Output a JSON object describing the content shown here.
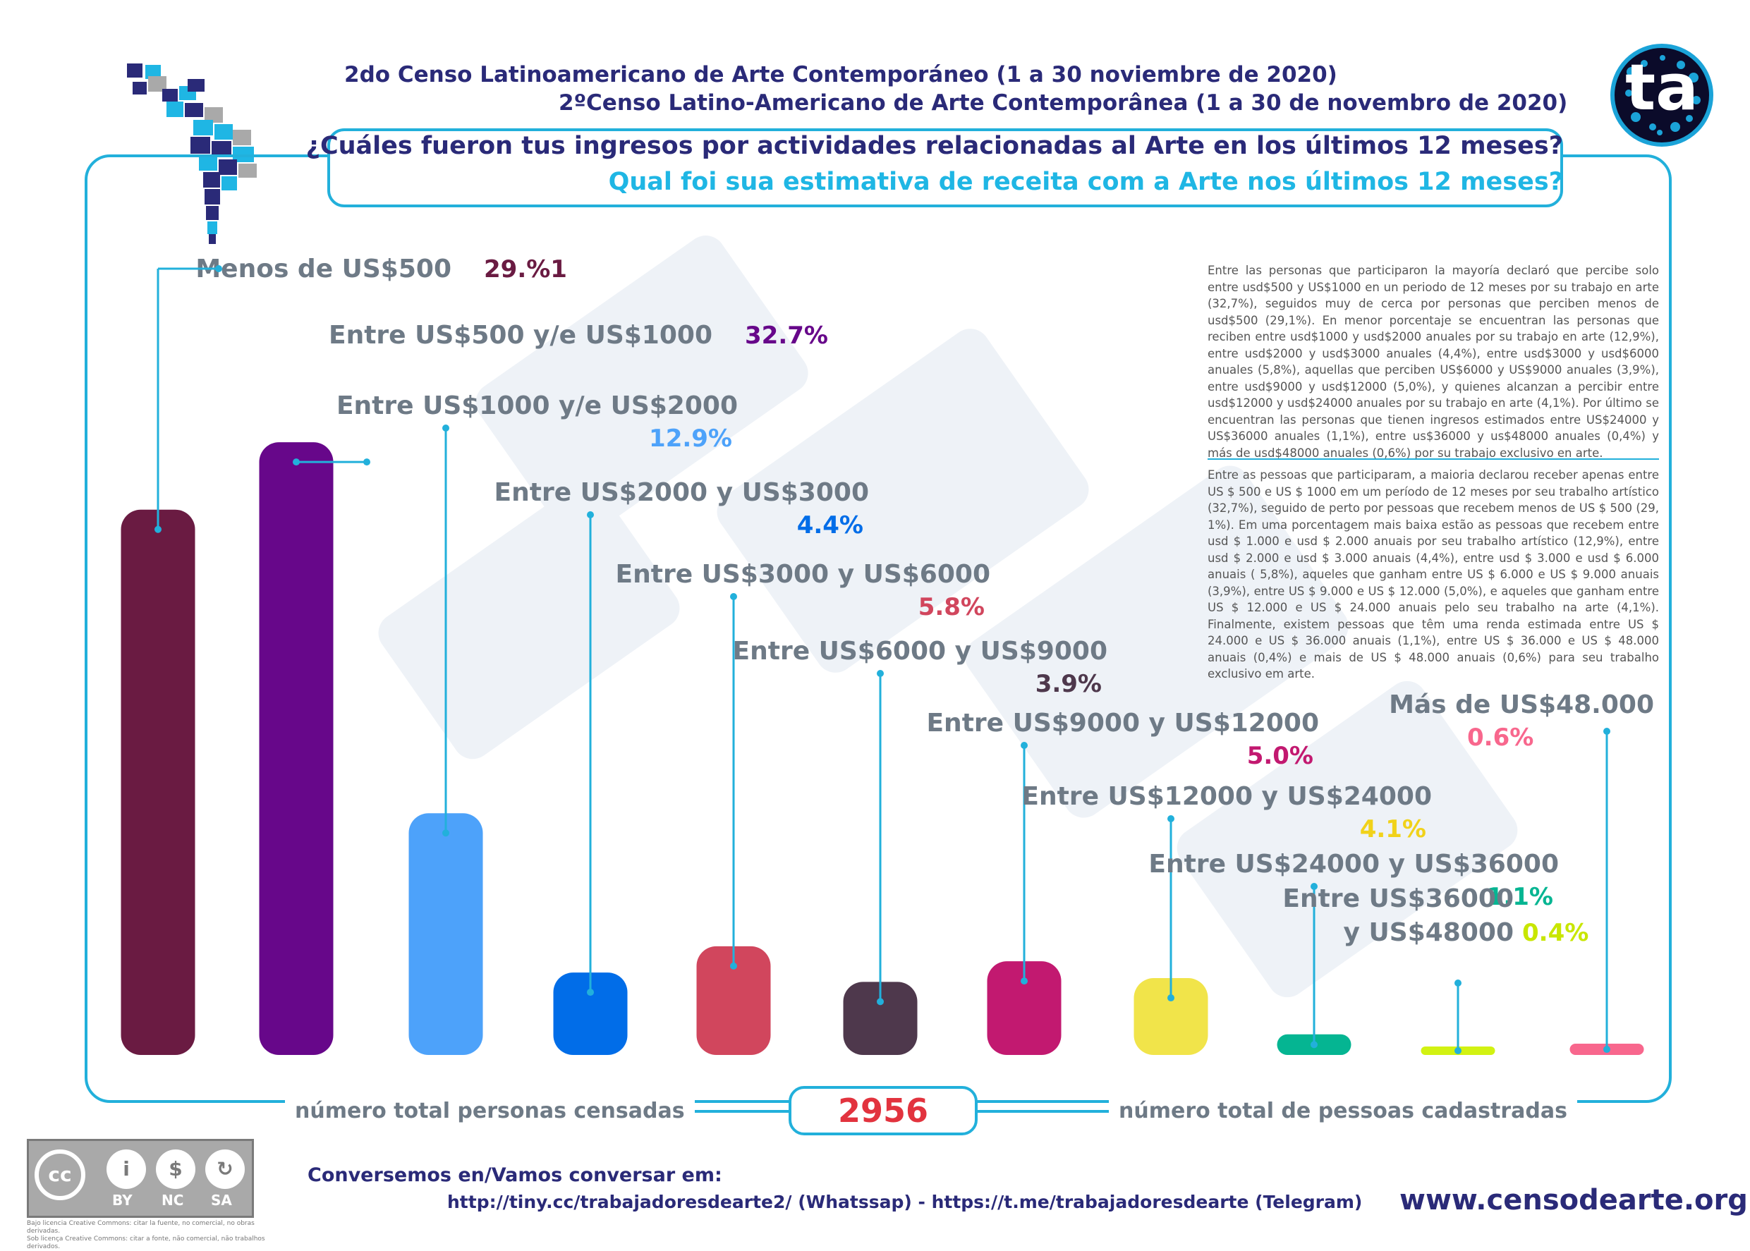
{
  "header": {
    "title_es": "2do Censo Latinoamericano de Arte Contemporáneo (1 a 30 noviembre de 2020)",
    "title_pt": "2ºCenso Latino-Americano de Arte Contemporânea (1 a 30 de novembro de 2020)",
    "question_es": "¿Cuáles fueron tus ingresos por actividades relacionadas al Arte en los últimos 12 meses?",
    "question_pt": "Qual foi sua estimativa de receita com a Arte nos últimos 12 meses?",
    "logo_text": "ta"
  },
  "description": {
    "es": "Entre las personas que participaron la mayoría declaró que percibe solo entre usd$500 y US$1000 en un periodo de 12 meses por su trabajo en arte (32,7%), seguidos muy de cerca por personas que perciben menos de usd$500 (29,1%). En menor porcentaje se encuentran las personas que reciben entre usd$1000 y usd$2000 anuales por su trabajo en arte (12,9%), entre usd$2000 y usd$3000 anuales (4,4%), entre usd$3000 y usd$6000 anuales (5,8%), aquellas que perciben US$6000 y US$9000 anuales (3,9%), entre usd$9000 y usd$12000 (5,0%), y quienes alcanzan a percibir entre usd$12000 y usd$24000 anuales por su trabajo en arte (4,1%). Por último se encuentran las personas que tienen ingresos estimados entre US$24000 y US$36000 anuales (1,1%), entre us$36000 y us$48000 anuales (0,4%) y más de usd$48000 anuales (0,6%) por su trabajo exclusivo en arte.",
    "pt": "Entre as pessoas que participaram, a maioria declarou receber apenas entre US $ 500 e US $ 1000 em um período de 12 meses por seu trabalho artístico (32,7%), seguido de perto por pessoas que recebem menos de US $ 500 (29, 1%). Em uma porcentagem mais baixa estão as pessoas que recebem entre usd $ 1.000 e usd $ 2.000 anuais por seu trabalho artístico (12,9%), entre usd $ 2.000 e usd $ 3.000 anuais (4,4%), entre usd $ 3.000 e usd $ 6.000 anuais ( 5,8%), aqueles que ganham entre US $ 6.000 e US $ 9.000 anuais (3,9%), entre US $ 9.000 e US $ 12.000 (5,0%), e aqueles que ganham entre US $ 12.000 e US $ 24.000 anuais pelo seu trabalho na arte (4,1%). Finalmente, existem pessoas que têm uma renda estimada entre US $ 24.000 e US $ 36.000 anuais (1,1%), entre US $ 36.000 e US $ 48.000 anuais (0,4%) e mais de US $ 48.000 anuais (0,6%) para seu trabalho exclusivo em arte."
  },
  "chart_data": {
    "type": "bar",
    "categories": [
      "Menos de US$500",
      "Entre US$500 y/e US$1000",
      "Entre US$1000 y/e US$2000",
      "Entre US$2000 y US$3000",
      "Entre US$3000 y US$6000",
      "Entre US$6000 y US$9000",
      "Entre US$9000 y US$12000",
      "Entre US$12000 y US$24000",
      "Entre US$24000 y US$36000",
      "Entre US$36000 y US$48000",
      "Más de US$48.000"
    ],
    "category_lines": [
      [
        "Menos de US$500"
      ],
      [
        "Entre US$500 y/e US$1000"
      ],
      [
        "Entre US$1000 y/e US$2000"
      ],
      [
        "Entre US$2000 y US$3000"
      ],
      [
        "Entre US$3000 y US$6000"
      ],
      [
        "Entre US$6000 y US$9000"
      ],
      [
        "Entre US$9000 y US$12000"
      ],
      [
        "Entre US$12000 y US$24000"
      ],
      [
        "Entre US$24000 y US$36000"
      ],
      [
        "Entre US$36000",
        "y US$48000"
      ],
      [
        "Más de US$48.000"
      ]
    ],
    "values": [
      29.1,
      32.7,
      12.9,
      4.4,
      5.8,
      3.9,
      5.0,
      4.1,
      1.1,
      0.4,
      0.6
    ],
    "value_labels": [
      "29.%1",
      "32.7%",
      "12.9%",
      "4.4%",
      "5.8%",
      "3.9%",
      "5.0%",
      "4.1%",
      "1.1%",
      "0.4%",
      "0.6%"
    ],
    "colors": [
      "#6a1b42",
      "#67078a",
      "#4da2fa",
      "#016de8",
      "#d1465d",
      "#4e384c",
      "#c21970",
      "#f1e44a",
      "#05b592",
      "#d2f212",
      "#f8678d"
    ],
    "label_colors": [
      "#6a1b42",
      "#67078a",
      "#4da2fa",
      "#016de8",
      "#d1465d",
      "#4e384c",
      "#c21970",
      "#f1d21a",
      "#05b592",
      "#c8e600",
      "#f8678d"
    ],
    "ylim": [
      0,
      35
    ],
    "grid": false,
    "legend": "none"
  },
  "footer": {
    "total_label_es": "número total personas censadas",
    "total_value": "2956",
    "total_label_pt": "número total de pessoas cadastradas",
    "cc_symbol": "cc",
    "cc_by": "BY",
    "cc_nc": "NC",
    "cc_sa": "SA",
    "cc_note_es": "Bajo licencia Creative Commons: citar la fuente, no comercial, no obras derivadas.",
    "cc_note_pt": "Sob licença Creative Commons: citar a fonte, não comercial, não trabalhos derivados.",
    "conversation": "Conversemos en/Vamos conversar em:",
    "links": "http://tiny.cc/trabajadoresdearte2/ (Whatssap) - https://t.me/trabajadoresdearte (Telegram)",
    "website": "www.censodearte.org"
  }
}
